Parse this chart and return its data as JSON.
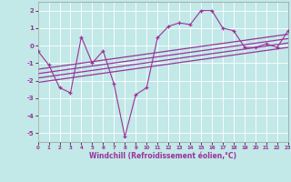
{
  "xlabel": "Windchill (Refroidissement éolien,°C)",
  "bg_color": "#c2e8e8",
  "line_color": "#993399",
  "grid_color": "#b0d8d8",
  "x_data": [
    0,
    1,
    2,
    3,
    4,
    5,
    6,
    7,
    8,
    9,
    10,
    11,
    12,
    13,
    14,
    15,
    16,
    17,
    18,
    19,
    20,
    21,
    22,
    23
  ],
  "y_main": [
    -0.3,
    -1.1,
    -2.4,
    -2.7,
    0.5,
    -1.0,
    -0.3,
    -2.2,
    -5.2,
    -2.8,
    -2.4,
    0.45,
    1.1,
    1.3,
    1.2,
    2.0,
    2.0,
    1.0,
    0.85,
    -0.1,
    -0.1,
    0.1,
    -0.1,
    0.85
  ],
  "reg_lines": [
    [
      0,
      -1.35,
      23,
      0.65
    ],
    [
      0,
      -1.6,
      23,
      0.4
    ],
    [
      0,
      -1.85,
      23,
      0.15
    ],
    [
      0,
      -2.1,
      23,
      -0.1
    ]
  ],
  "ylim": [
    -5.5,
    2.5
  ],
  "xlim": [
    0,
    23
  ],
  "yticks": [
    -5,
    -4,
    -3,
    -2,
    -1,
    0,
    1,
    2
  ],
  "xticks": [
    0,
    1,
    2,
    3,
    4,
    5,
    6,
    7,
    8,
    9,
    10,
    11,
    12,
    13,
    14,
    15,
    16,
    17,
    18,
    19,
    20,
    21,
    22,
    23
  ]
}
